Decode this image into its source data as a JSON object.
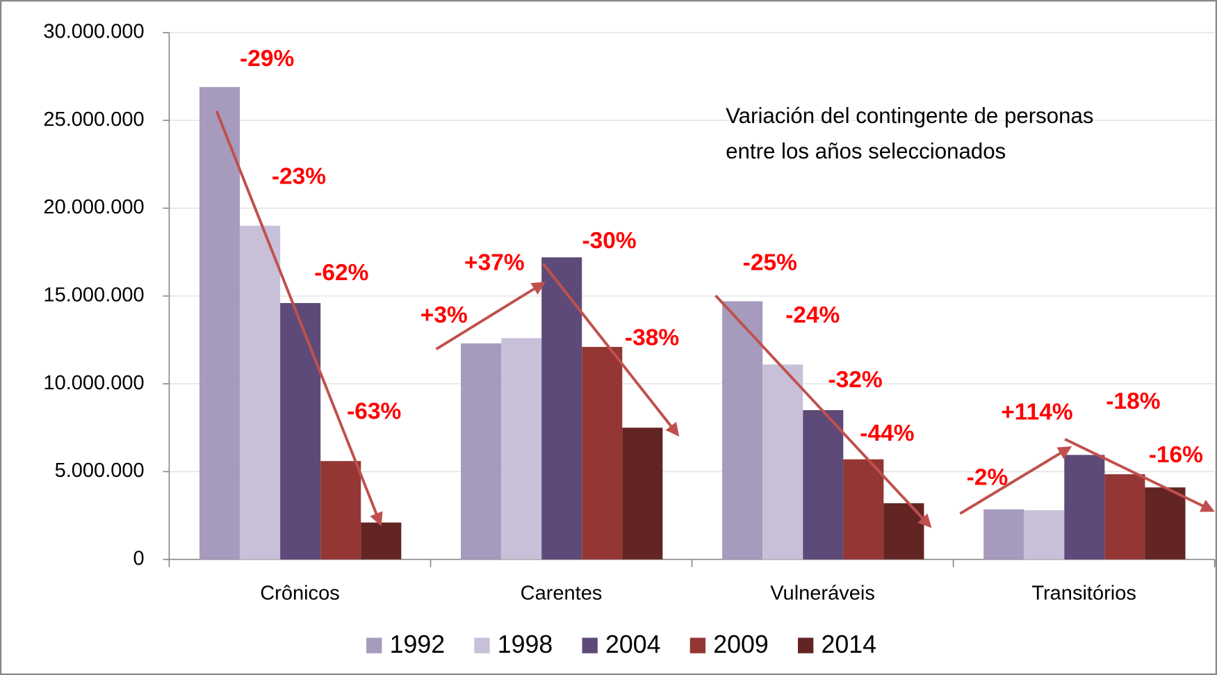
{
  "chart_data": {
    "type": "bar",
    "categories": [
      "Crônicos",
      "Carentes",
      "Vulneráveis",
      "Transitórios"
    ],
    "series": [
      {
        "name": "1992",
        "color": "#a69bbd",
        "values": [
          26900000,
          12300000,
          14700000,
          2850000
        ]
      },
      {
        "name": "1998",
        "color": "#c8c0d8",
        "values": [
          19000000,
          12600000,
          11100000,
          2800000
        ]
      },
      {
        "name": "2004",
        "color": "#5e4a78",
        "values": [
          14600000,
          17200000,
          8500000,
          5950000
        ]
      },
      {
        "name": "2009",
        "color": "#943634",
        "values": [
          5600000,
          12100000,
          5700000,
          4850000
        ]
      },
      {
        "name": "2014",
        "color": "#632523",
        "values": [
          2100000,
          7500000,
          3200000,
          4100000
        ]
      }
    ],
    "ylim": [
      0,
      30000000
    ],
    "yticks": [
      0,
      {
        "value": 5000000,
        "label": "5.000.000"
      },
      {
        "value": 10000000,
        "label": "10.000.000"
      },
      {
        "value": 15000000,
        "label": "15.000.000"
      },
      {
        "value": 20000000,
        "label": "20.000.000"
      },
      {
        "value": 25000000,
        "label": "25.000.000"
      },
      {
        "value": 30000000,
        "label": "30.000.000"
      }
    ],
    "grid": true,
    "legend": "bottom",
    "note": [
      "Variación del contingente de personas",
      "entre los años seleccionados"
    ],
    "annotations": [
      "-29%",
      "-23%",
      "-62%",
      "-63%",
      "+3%",
      "+37%",
      "-30%",
      "-38%",
      "-25%",
      "-24%",
      "-32%",
      "-44%",
      "-2%",
      "+114%",
      "-18%",
      "-16%"
    ]
  }
}
